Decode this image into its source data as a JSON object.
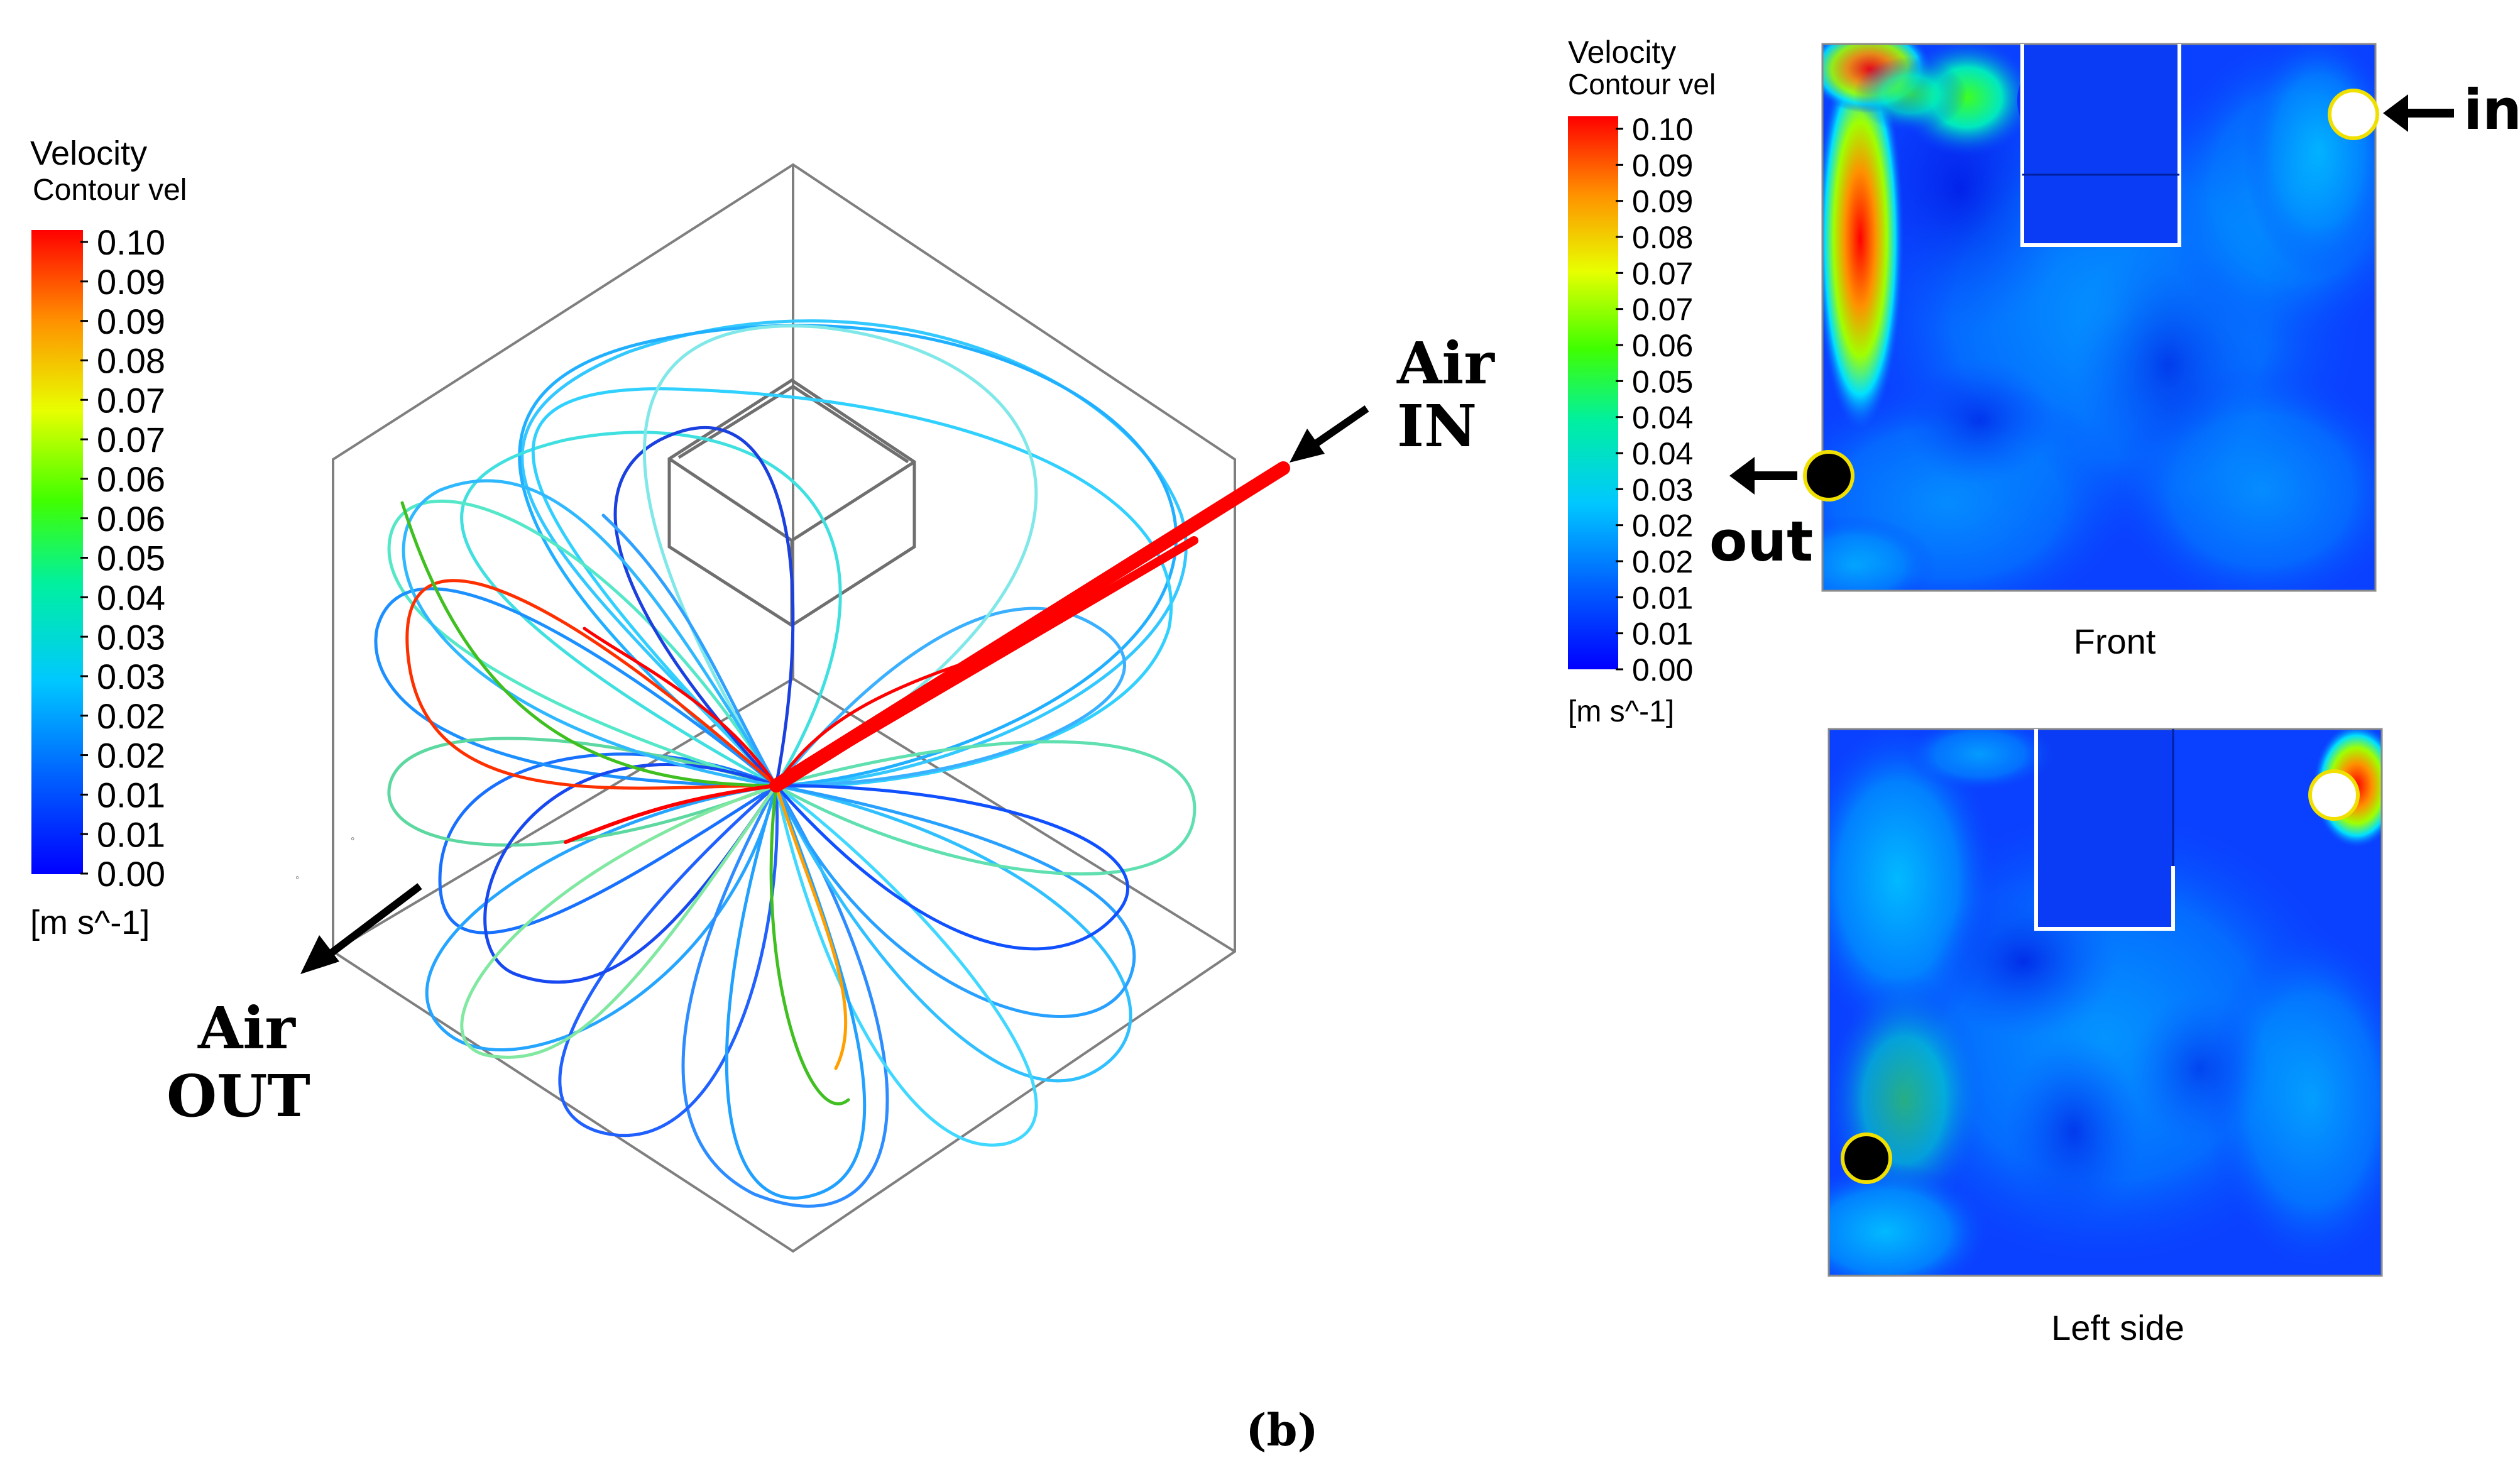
{
  "figure": {
    "caption": "(b)"
  },
  "left_panel": {
    "legend": {
      "title": "Velocity",
      "subtitle": "Contour vel",
      "ticks": [
        "0.10",
        "0.09",
        "0.09",
        "0.08",
        "0.07",
        "0.07",
        "0.06",
        "0.06",
        "0.05",
        "0.04",
        "0.03",
        "0.03",
        "0.02",
        "0.02",
        "0.01",
        "0.01",
        "0.00"
      ],
      "unit": "[m s^-1]"
    },
    "annotations": {
      "air_in_line1": "Air",
      "air_in_line2": "IN",
      "air_out_line1": "Air",
      "air_out_line2": "OUT"
    }
  },
  "right_panel": {
    "legend": {
      "title": "Velocity",
      "subtitle": "Contour vel",
      "ticks": [
        "0.10",
        "0.09",
        "0.09",
        "0.08",
        "0.07",
        "0.07",
        "0.06",
        "0.05",
        "0.04",
        "0.04",
        "0.03",
        "0.02",
        "0.02",
        "0.01",
        "0.01",
        "0.00"
      ],
      "unit": "[m s^-1]"
    },
    "front": {
      "label": "Front",
      "inlet_label": "in",
      "outlet_label": "out"
    },
    "left_side": {
      "label": "Left side"
    }
  },
  "colors": {
    "colormap": [
      "#0000ff",
      "#0066ff",
      "#00ccff",
      "#00ff99",
      "#66ff00",
      "#ffff00",
      "#ff9900",
      "#ff0000"
    ],
    "background_field": "#0a40ff",
    "frame": "#7f7f7f"
  }
}
